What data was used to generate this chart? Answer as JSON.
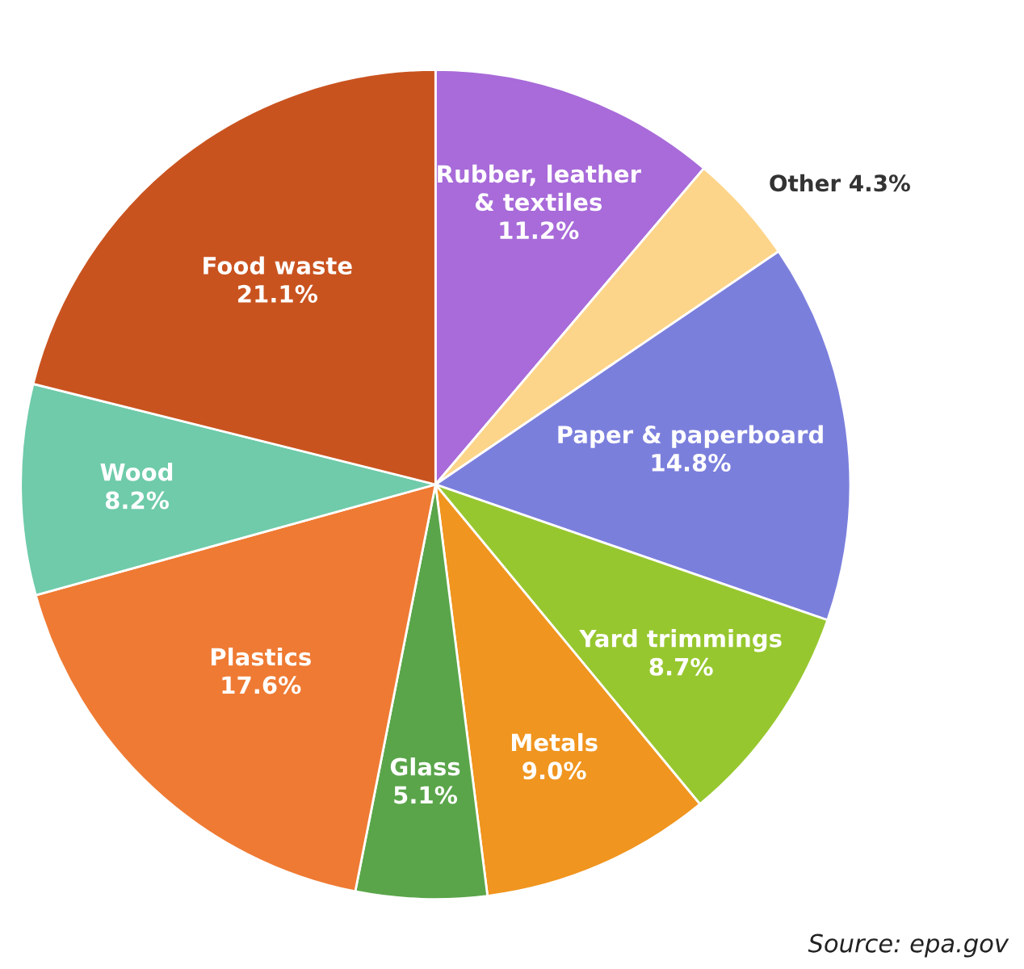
{
  "chart_data": {
    "type": "pie",
    "categories": [
      "Rubber, leather\n& textiles",
      "Other",
      "Paper & paperboard",
      "Yard trimmings",
      "Metals",
      "Glass",
      "Plastics",
      "Wood",
      "Food waste"
    ],
    "values": [
      11.2,
      4.3,
      14.8,
      8.7,
      9.0,
      5.1,
      17.6,
      8.2,
      21.1
    ],
    "value_labels": [
      "11.2%",
      "4.3%",
      "14.8%",
      "8.7%",
      "9.0%",
      "5.1%",
      "17.6%",
      "8.2%",
      "21.1%"
    ],
    "colors": [
      "#a86bd9",
      "#fdd58a",
      "#7b7fdc",
      "#97c72f",
      "#f0951f",
      "#5aa54a",
      "#ef7a33",
      "#6fcbaa",
      "#c9531f"
    ],
    "annotations": [
      "Source: epa.gov"
    ]
  }
}
